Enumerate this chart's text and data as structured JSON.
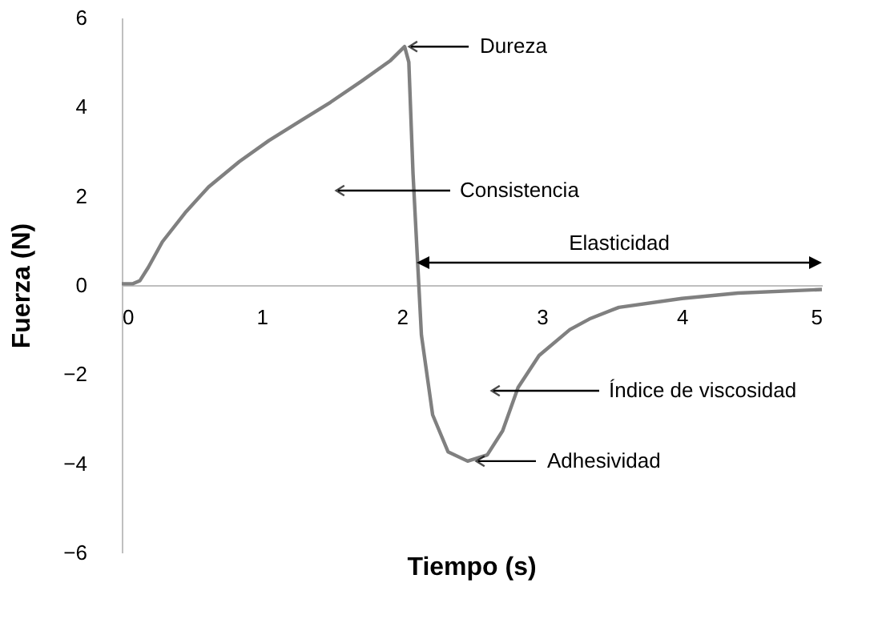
{
  "chart_data": {
    "type": "line",
    "xlabel": "Tiempo (s)",
    "ylabel": "Fuerza  (N)",
    "x": [
      0,
      0.08,
      0.13,
      0.19,
      0.29,
      0.46,
      0.62,
      0.84,
      1.05,
      1.27,
      1.49,
      1.71,
      1.92,
      2.02,
      2.05,
      2.08,
      2.11,
      2.14,
      2.22,
      2.33,
      2.47,
      2.61,
      2.72,
      2.83,
      2.98,
      3.2,
      3.34,
      3.55,
      4,
      4.4,
      5
    ],
    "series": [
      {
        "color": "#808080",
        "values": [
          0.03,
          0.03,
          0.1,
          0.4,
          0.97,
          1.65,
          2.2,
          2.77,
          3.24,
          3.67,
          4.1,
          4.57,
          5.04,
          5.35,
          5.0,
          2.5,
          0.68,
          -1.12,
          -2.91,
          -3.74,
          -3.95,
          -3.81,
          -3.27,
          -2.3,
          -1.58,
          -1.0,
          -0.76,
          -0.5,
          -0.3,
          -0.18,
          -0.1
        ]
      }
    ],
    "xlim": [
      0,
      5
    ],
    "xticks": [
      0,
      1,
      2,
      3,
      4,
      5
    ],
    "ylim": [
      -6,
      6
    ],
    "yticks": [
      -6,
      -4,
      -2,
      0,
      2,
      4,
      6
    ],
    "annotations": [
      {
        "text": "Dureza",
        "x": 2.02,
        "y": 5.35
      },
      "Consistencia",
      "Elasticidad",
      "Índice de viscosidad",
      {
        "text": "Adhesividad",
        "x": 2.5,
        "y": -3.95
      }
    ],
    "grid": false,
    "marker": "none",
    "line_style": "solid"
  }
}
